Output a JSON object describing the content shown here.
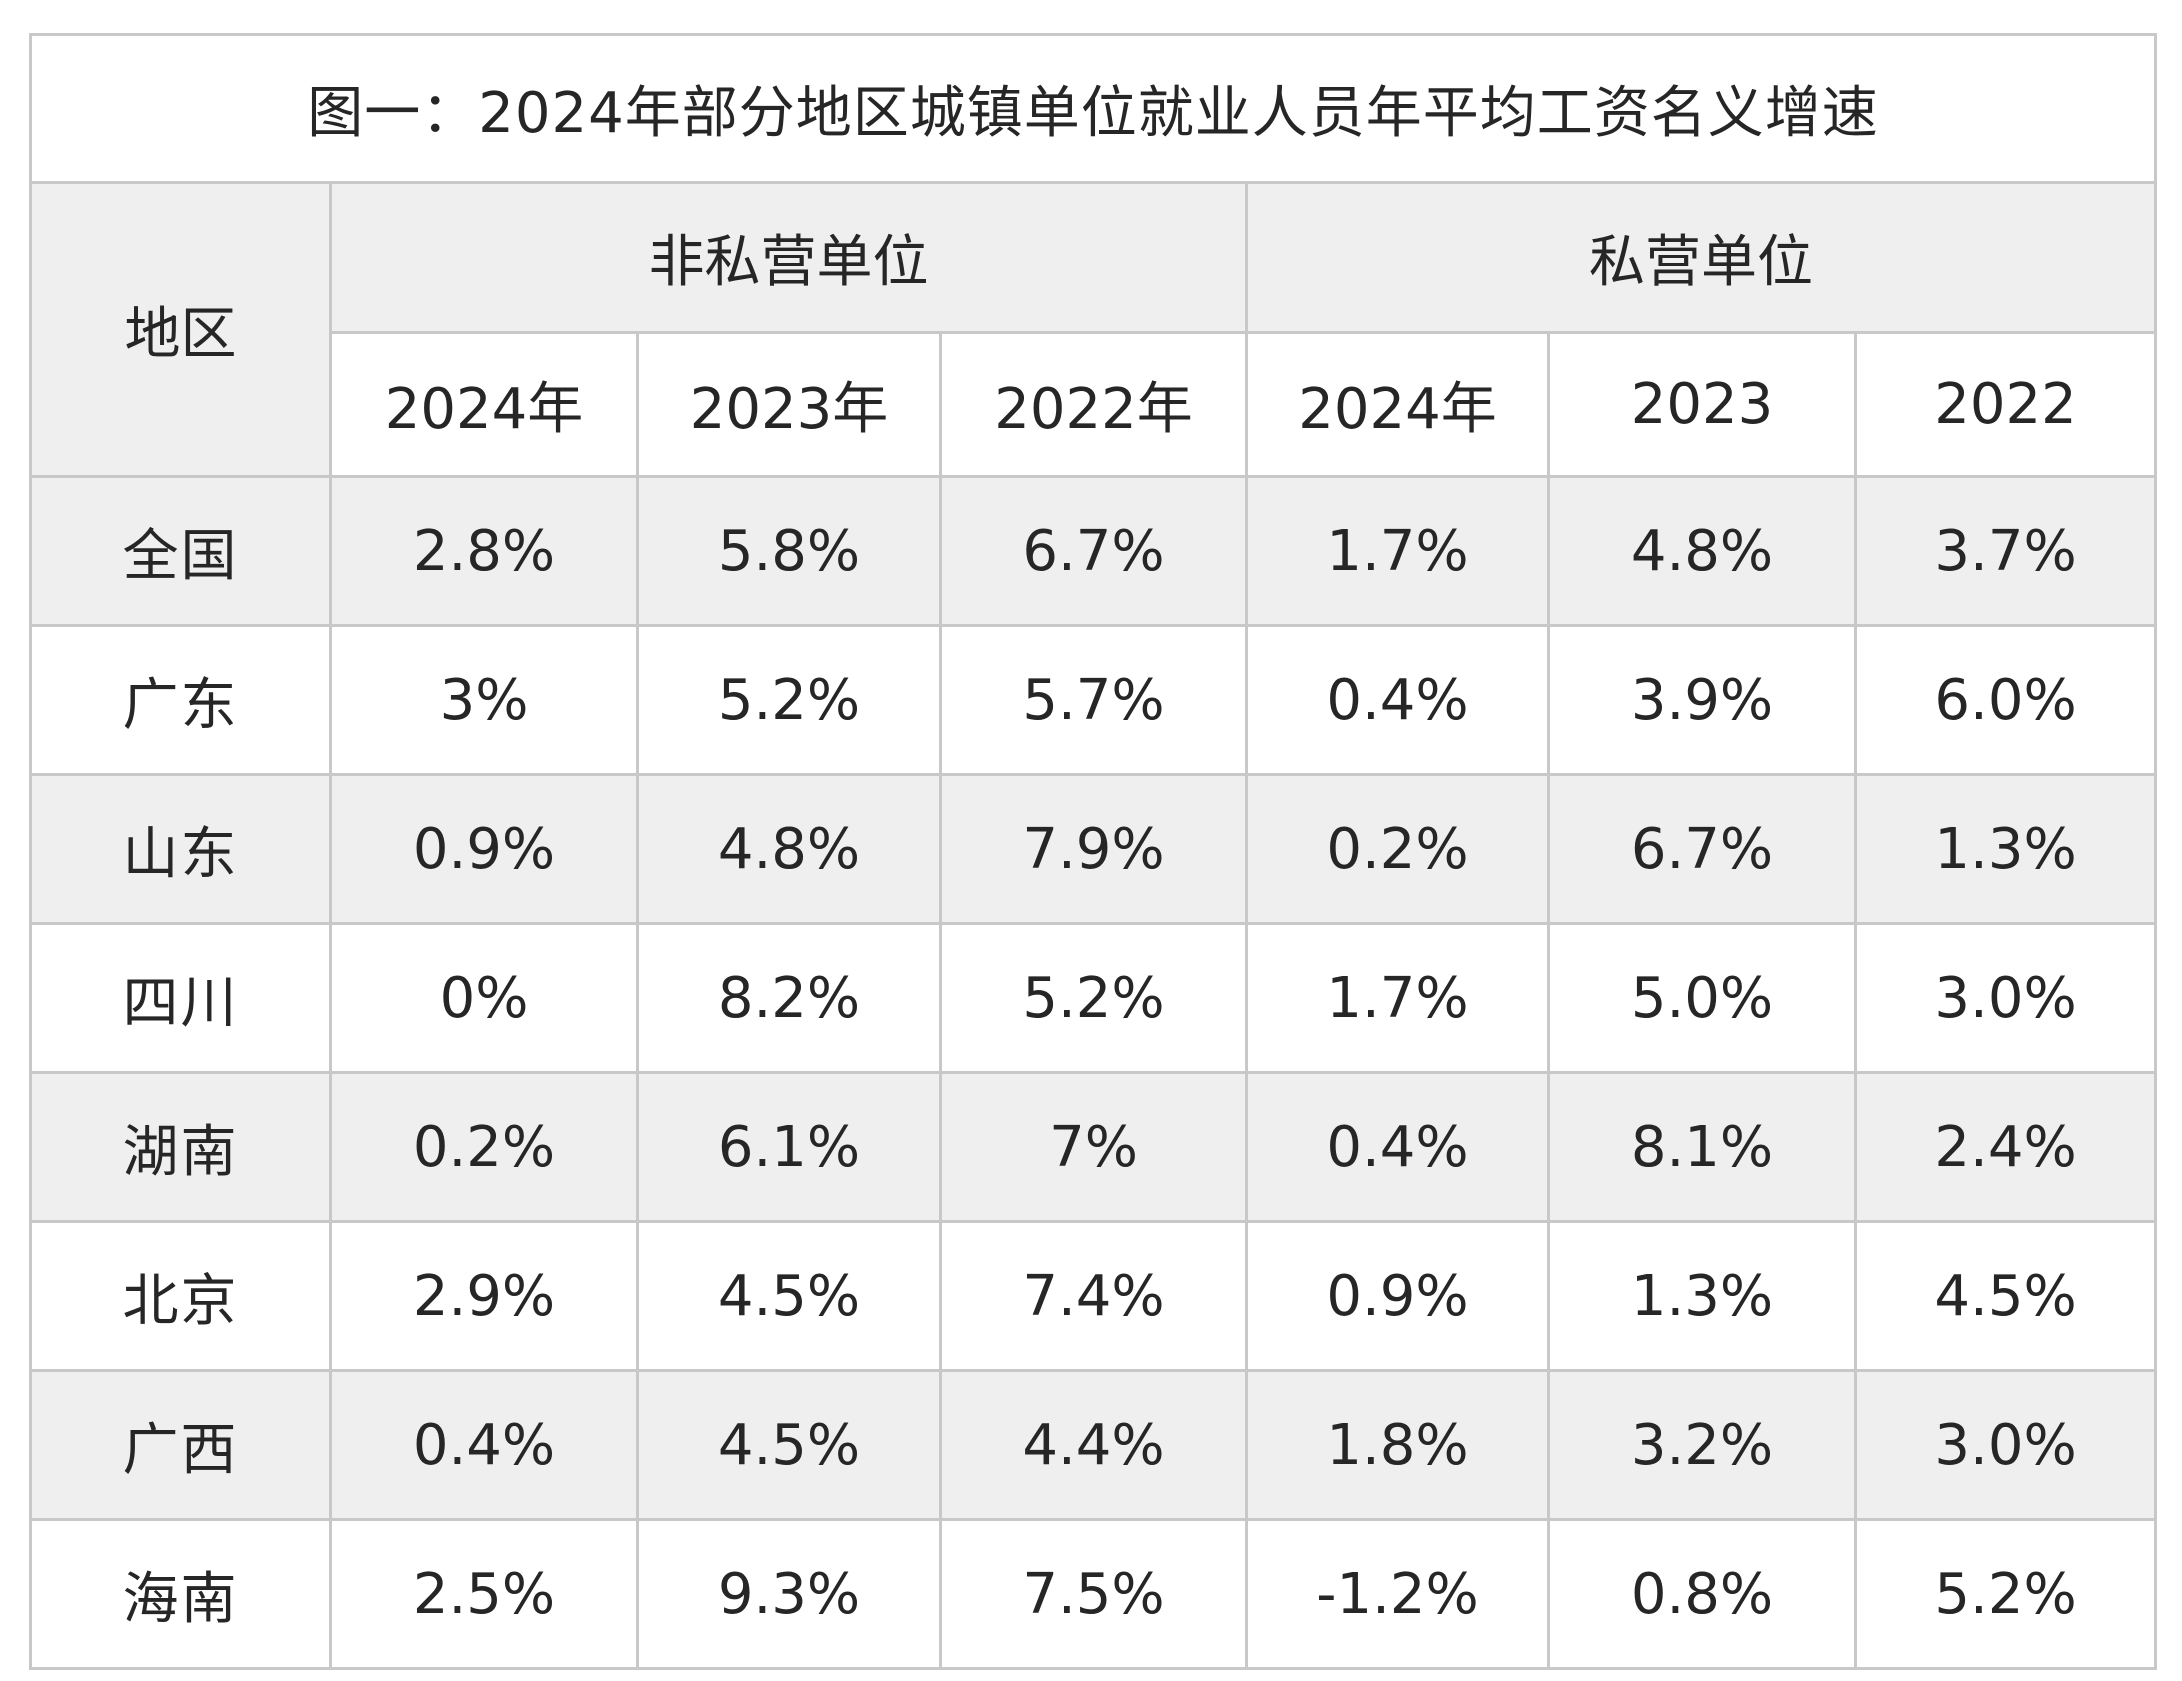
{
  "title": "图一：2024年部分地区城镇单位就业人员年平均工资名义增速",
  "header": {
    "region": "地区",
    "group_nonprivate": "非私营单位",
    "group_private": "私营单位",
    "years": [
      "2024年",
      "2023年",
      "2022年",
      "2024年",
      "2023",
      "2022"
    ]
  },
  "rows": [
    {
      "region": "全国",
      "values": [
        "2.8%",
        "5.8%",
        "6.7%",
        "1.7%",
        "4.8%",
        "3.7%"
      ]
    },
    {
      "region": "广东",
      "values": [
        "3%",
        "5.2%",
        "5.7%",
        "0.4%",
        "3.9%",
        "6.0%"
      ]
    },
    {
      "region": "山东",
      "values": [
        "0.9%",
        "4.8%",
        "7.9%",
        "0.2%",
        "6.7%",
        "1.3%"
      ]
    },
    {
      "region": "四川",
      "values": [
        "0%",
        "8.2%",
        "5.2%",
        "1.7%",
        "5.0%",
        "3.0%"
      ]
    },
    {
      "region": "湖南",
      "values": [
        "0.2%",
        "6.1%",
        "7%",
        "0.4%",
        "8.1%",
        "2.4%"
      ]
    },
    {
      "region": "北京",
      "values": [
        "2.9%",
        "4.5%",
        "7.4%",
        "0.9%",
        "1.3%",
        "4.5%"
      ]
    },
    {
      "region": "广西",
      "values": [
        "0.4%",
        "4.5%",
        "4.4%",
        "1.8%",
        "3.2%",
        "3.0%"
      ]
    },
    {
      "region": "海南",
      "values": [
        "2.5%",
        "9.3%",
        "7.5%",
        "-1.2%",
        "0.8%",
        "5.2%"
      ]
    }
  ]
}
